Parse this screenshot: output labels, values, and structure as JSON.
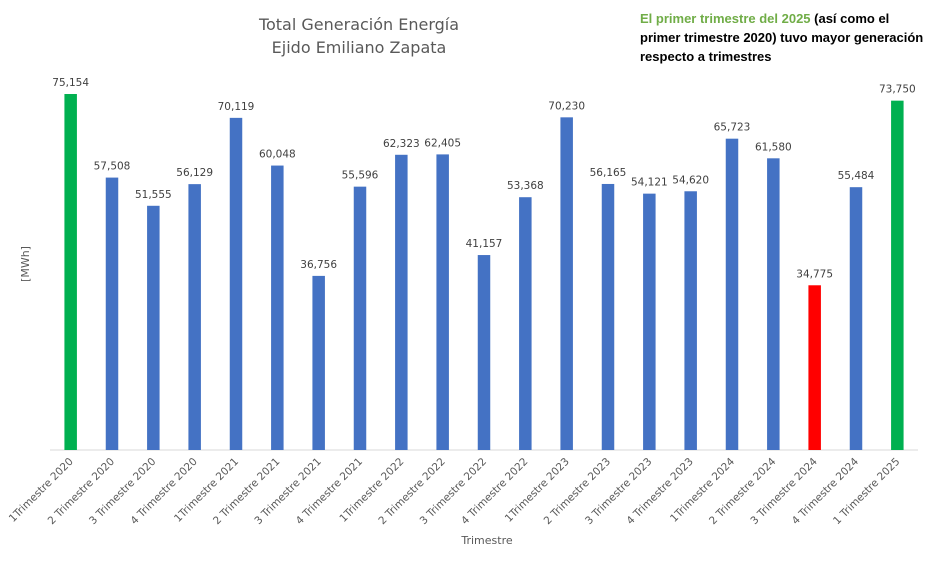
{
  "chart_data": {
    "type": "bar",
    "title": [
      "Total Generación Energía",
      "Ejido Emiliano Zapata"
    ],
    "xlabel": "Trimestre",
    "ylabel": "[MWh]",
    "ylim": [
      0,
      76
    ],
    "grid": false,
    "legend": "none",
    "categories": [
      "1Trimestre 2020",
      "2 Trimestre 2020",
      "3 Trimestre 2020",
      "4 Trimestre 2020",
      "1Trimestre 2021",
      "2 Trimestre 2021",
      "3 Trimestre 2021",
      "4 Trimestre 2021",
      "1Trimestre 2022",
      "2 Trimestre 2022",
      "3 Trimestre 2022",
      "4 Trimestre 2022",
      "1Trimestre 2023",
      "2 Trimestre 2023",
      "3 Trimestre 2023",
      "4 Trimestre 2023",
      "1Trimestre 2024",
      "2 Trimestre 2024",
      "3 Trimestre 2024",
      "4 Trimestre 2024",
      "1 Trimestre 2025"
    ],
    "values": [
      75.154,
      57.508,
      51.555,
      56.129,
      70.119,
      60.048,
      36.756,
      55.596,
      62.323,
      62.405,
      41.157,
      53.368,
      70.23,
      56.165,
      54.121,
      54.62,
      65.723,
      61.58,
      34.775,
      55.484,
      73.75
    ],
    "data_labels": [
      "75,154",
      "57,508",
      "51,555",
      "56,129",
      "70,119",
      "60,048",
      "36,756",
      "55,596",
      "62,323",
      "62,405",
      "41,157",
      "53,368",
      "70,230",
      "56,165",
      "54,121",
      "54,620",
      "65,723",
      "61,580",
      "34,775",
      "55,484",
      "73,750"
    ],
    "bar_colors": [
      "#00b050",
      "#4472c4",
      "#4472c4",
      "#4472c4",
      "#4472c4",
      "#4472c4",
      "#4472c4",
      "#4472c4",
      "#4472c4",
      "#4472c4",
      "#4472c4",
      "#4472c4",
      "#4472c4",
      "#4472c4",
      "#4472c4",
      "#4472c4",
      "#4472c4",
      "#4472c4",
      "#ff0000",
      "#4472c4",
      "#00b050"
    ],
    "annotation": {
      "highlight": "El primer trimestre del 2025",
      "rest": " (así como el primer trimestre 2020) tuvo mayor generación respecto a trimestres",
      "highlight_color": "#70ad47"
    }
  },
  "colors": {
    "axis_line": "#d9d9d9",
    "text": "#595959"
  }
}
